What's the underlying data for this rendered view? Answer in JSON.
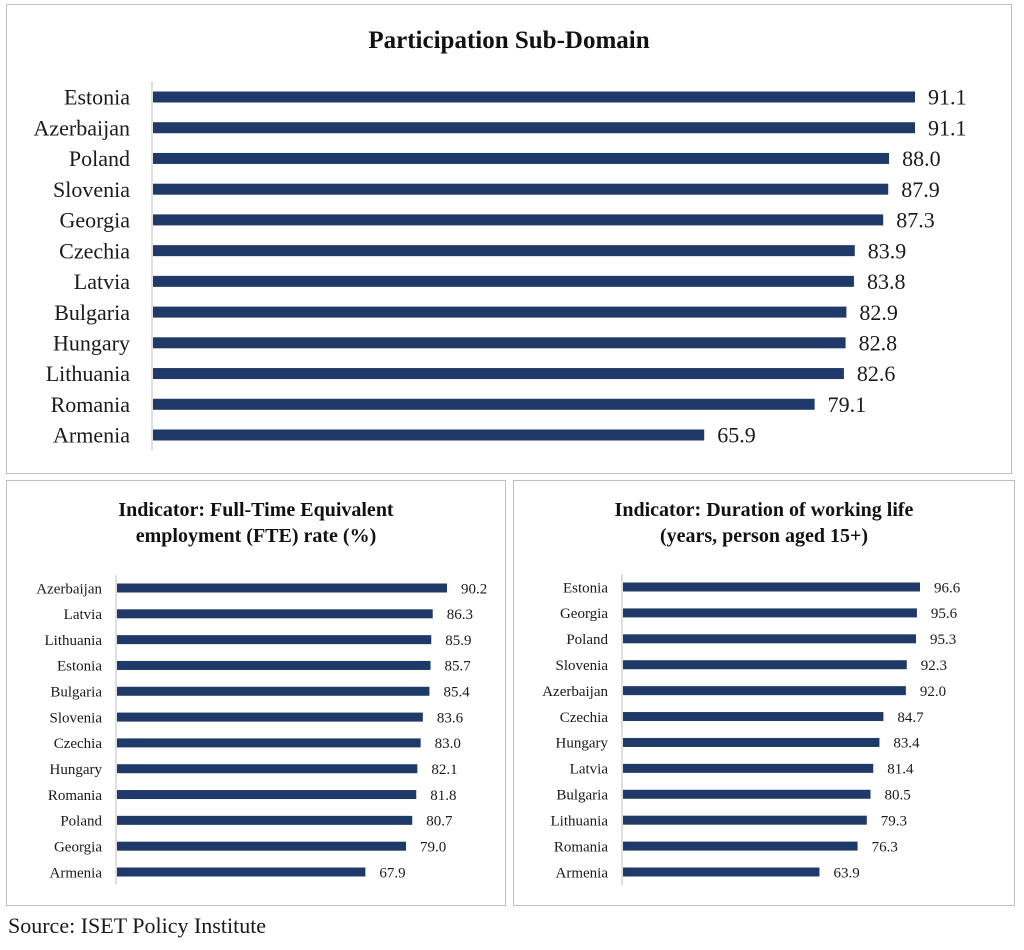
{
  "source": "Source: ISET Policy Institute",
  "colors": {
    "bar": "#1f3a68",
    "axis": "#bfbfbf",
    "text": "#1a1a1a"
  },
  "chart_data": [
    {
      "type": "bar",
      "orientation": "horizontal",
      "title": "Participation Sub-Domain",
      "categories": [
        "Estonia",
        "Azerbaijan",
        "Poland",
        "Slovenia",
        "Georgia",
        "Czechia",
        "Latvia",
        "Bulgaria",
        "Hungary",
        "Lithuania",
        "Romania",
        "Armenia"
      ],
      "values": [
        91.1,
        91.1,
        88.0,
        87.9,
        87.3,
        83.9,
        83.8,
        82.9,
        82.8,
        82.6,
        79.1,
        65.9
      ],
      "labels": [
        "91.1",
        "91.1",
        "88.0",
        "87.9",
        "87.3",
        "83.9",
        "83.8",
        "82.9",
        "82.8",
        "82.6",
        "79.1",
        "65.9"
      ],
      "xlim": [
        0,
        91.1
      ],
      "grid": false
    },
    {
      "type": "bar",
      "orientation": "horizontal",
      "title_lines": [
        "Indicator: Full-Time Equivalent",
        "employment (FTE) rate (%)"
      ],
      "categories": [
        "Azerbaijan",
        "Latvia",
        "Lithuania",
        "Estonia",
        "Bulgaria",
        "Slovenia",
        "Czechia",
        "Hungary",
        "Romania",
        "Poland",
        "Georgia",
        "Armenia"
      ],
      "values": [
        90.2,
        86.3,
        85.9,
        85.7,
        85.4,
        83.6,
        83.0,
        82.1,
        81.8,
        80.7,
        79.0,
        67.9
      ],
      "labels": [
        "90.2",
        "86.3",
        "85.9",
        "85.7",
        "85.4",
        "83.6",
        "83.0",
        "82.1",
        "81.8",
        "80.7",
        "79.0",
        "67.9"
      ],
      "xlim": [
        0,
        90.2
      ],
      "grid": false
    },
    {
      "type": "bar",
      "orientation": "horizontal",
      "title_lines": [
        "Indicator: Duration of working life",
        "(years, person aged 15+)"
      ],
      "categories": [
        "Estonia",
        "Georgia",
        "Poland",
        "Slovenia",
        "Azerbaijan",
        "Czechia",
        "Hungary",
        "Latvia",
        "Bulgaria",
        "Lithuania",
        "Romania",
        "Armenia"
      ],
      "values": [
        96.6,
        95.6,
        95.3,
        92.3,
        92.0,
        84.7,
        83.4,
        81.4,
        80.5,
        79.3,
        76.3,
        63.9
      ],
      "labels": [
        "96.6",
        "95.6",
        "95.3",
        "92.3",
        "92.0",
        "84.7",
        "83.4",
        "81.4",
        "80.5",
        "79.3",
        "76.3",
        "63.9"
      ],
      "xlim": [
        0,
        96.6
      ],
      "grid": false
    }
  ]
}
